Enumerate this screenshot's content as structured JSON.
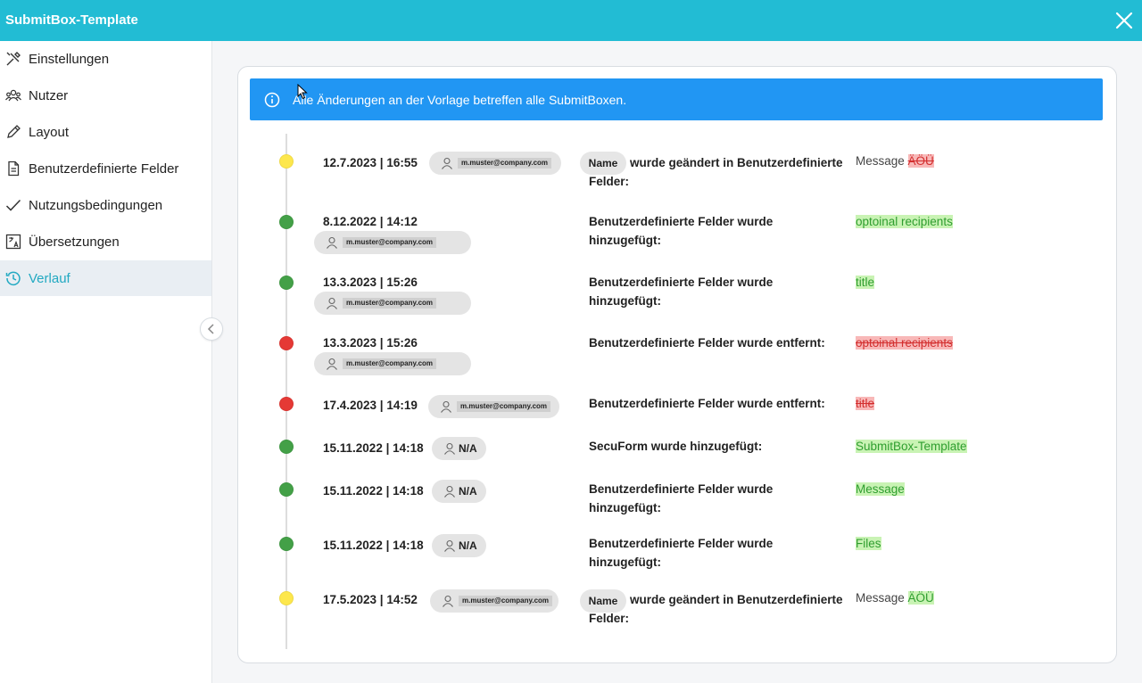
{
  "window": {
    "title": "SubmitBox-Template",
    "close_icon": "close-icon"
  },
  "sidebar": {
    "items": [
      {
        "label": "Einstellungen",
        "icon": "tools-icon"
      },
      {
        "label": "Nutzer",
        "icon": "users-icon"
      },
      {
        "label": "Layout",
        "icon": "pen-icon"
      },
      {
        "label": "Benutzerdefinierte Felder",
        "icon": "document-icon"
      },
      {
        "label": "Nutzungsbedingungen",
        "icon": "checkmark-icon"
      },
      {
        "label": "Übersetzungen",
        "icon": "translate-icon"
      },
      {
        "label": "Verlauf",
        "icon": "history-icon",
        "active": true
      }
    ]
  },
  "banner": {
    "text": "Alle Änderungen an der Vorlage betreffen alle SubmitBoxen."
  },
  "colors": {
    "accent": "#22bcd4",
    "banner": "#2196f3",
    "yellow": "#fde74c",
    "green": "#43a047",
    "red": "#e53935",
    "added_bg": "#c9f3b4",
    "removed_bg": "#f8b8b8"
  },
  "history": [
    {
      "status": "yellow",
      "datetime": "12.7.2023 | 16:55",
      "user": "m.muster@company.com",
      "field_badge": "Name",
      "description": "wurde geändert in Benutzerdefinierte Felder:",
      "value_prefix": "Message",
      "value": "ÄÖÜ",
      "value_type": "removed"
    },
    {
      "status": "green",
      "datetime": "8.12.2022 | 14:12",
      "user": "m.muster@company.com",
      "description": "Benutzerdefinierte Felder wurde hinzugefügt:",
      "value": "optoinal recipients",
      "value_type": "added"
    },
    {
      "status": "green",
      "datetime": "13.3.2023 | 15:26",
      "user": "m.muster@company.com",
      "description": "Benutzerdefinierte Felder wurde hinzugefügt:",
      "value": "title",
      "value_type": "added"
    },
    {
      "status": "red",
      "datetime": "13.3.2023 | 15:26",
      "user": "m.muster@company.com",
      "description": "Benutzerdefinierte Felder wurde entfernt:",
      "value": "optoinal recipients",
      "value_type": "removed"
    },
    {
      "status": "red",
      "datetime": "17.4.2023 | 14:19",
      "user": "m.muster@company.com",
      "description": "Benutzerdefinierte Felder wurde entfernt:",
      "value": "title",
      "value_type": "removed"
    },
    {
      "status": "green",
      "datetime": "15.11.2022 | 14:18",
      "user": "N/A",
      "description": "SecuForm wurde hinzugefügt:",
      "value": "SubmitBox-Template",
      "value_type": "added"
    },
    {
      "status": "green",
      "datetime": "15.11.2022 | 14:18",
      "user": "N/A",
      "description": "Benutzerdefinierte Felder wurde hinzugefügt:",
      "value": "Message",
      "value_type": "added"
    },
    {
      "status": "green",
      "datetime": "15.11.2022 | 14:18",
      "user": "N/A",
      "description": "Benutzerdefinierte Felder wurde hinzugefügt:",
      "value": "Files",
      "value_type": "added"
    },
    {
      "status": "yellow",
      "datetime": "17.5.2023 | 14:52",
      "user": "m.muster@company.com",
      "field_badge": "Name",
      "description": "wurde geändert in Benutzerdefinierte Felder:",
      "value_prefix": "Message",
      "value": "ÄÖÜ",
      "value_type": "added"
    }
  ]
}
